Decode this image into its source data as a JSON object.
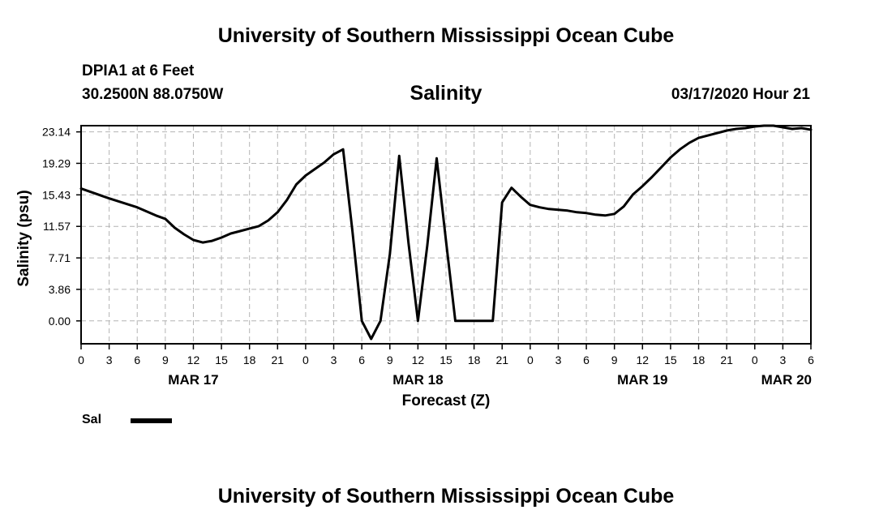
{
  "header": {
    "title": "University of Southern Mississippi Ocean Cube",
    "station": "DPIA1 at 6 Feet",
    "coordinates": "30.2500N 88.0750W",
    "parameter": "Salinity",
    "timestamp": "03/17/2020 Hour 21"
  },
  "footer": {
    "title": "University of Southern Mississippi Ocean Cube"
  },
  "chart_data": {
    "type": "line",
    "ylabel": "Salinity (psu)",
    "xlabel": "Forecast (Z)",
    "yticks": [
      "23.14",
      "19.29",
      "15.43",
      "11.57",
      "7.71",
      "3.86",
      "0.00"
    ],
    "ytick_values": [
      23.14,
      19.29,
      15.43,
      11.57,
      7.71,
      3.86,
      0.0
    ],
    "ylim": [
      -2.8,
      23.9
    ],
    "xlim": [
      0,
      78
    ],
    "xtick_hours": [
      0,
      3,
      6,
      9,
      12,
      15,
      18,
      21,
      24,
      27,
      30,
      33,
      36,
      39,
      42,
      45,
      48,
      51,
      54,
      57,
      60,
      63,
      66,
      69,
      72,
      75,
      78
    ],
    "xtick_labels": [
      "0",
      "3",
      "6",
      "9",
      "12",
      "15",
      "18",
      "21",
      "0",
      "3",
      "6",
      "9",
      "12",
      "15",
      "18",
      "21",
      "0",
      "3",
      "6",
      "9",
      "12",
      "15",
      "18",
      "21",
      "0",
      "3",
      "6"
    ],
    "date_labels": [
      {
        "hour": 12,
        "label": "MAR 17"
      },
      {
        "hour": 36,
        "label": "MAR 18"
      },
      {
        "hour": 60,
        "label": "MAR 19"
      },
      {
        "hour": 78,
        "label": "MAR 20"
      }
    ],
    "grid": true,
    "legend_position": "bottom-left",
    "series": [
      {
        "name": "Sal",
        "color": "#000000",
        "x": [
          0,
          3,
          6,
          8,
          9,
          10,
          11,
          12,
          13,
          14,
          15,
          16,
          17,
          18,
          19,
          20,
          21,
          22,
          23,
          24,
          25,
          26,
          27,
          28,
          29,
          30,
          31,
          32,
          33,
          34,
          35,
          36,
          37,
          38,
          39,
          40,
          41,
          42,
          43,
          44,
          45,
          46,
          47,
          48,
          49,
          50,
          51,
          52,
          53,
          54,
          55,
          56,
          57,
          58,
          59,
          60,
          61,
          62,
          63,
          64,
          65,
          66,
          67,
          68,
          69,
          70,
          71,
          72,
          73,
          74,
          75,
          76,
          77,
          78
        ],
        "y": [
          16.2,
          15.0,
          13.9,
          12.9,
          12.5,
          11.4,
          10.6,
          9.9,
          9.6,
          9.8,
          10.2,
          10.7,
          11.0,
          11.3,
          11.6,
          12.3,
          13.3,
          14.8,
          16.7,
          17.8,
          18.6,
          19.4,
          20.4,
          21.0,
          11.0,
          0.0,
          -2.2,
          0.0,
          8.2,
          20.2,
          9.5,
          0.0,
          9.2,
          19.9,
          9.8,
          0.0,
          0.0,
          0.0,
          0.0,
          0.0,
          14.5,
          16.3,
          15.2,
          14.2,
          13.9,
          13.7,
          13.6,
          13.5,
          13.3,
          13.2,
          13.0,
          12.9,
          13.1,
          14.0,
          15.5,
          16.5,
          17.6,
          18.8,
          20.0,
          21.0,
          21.8,
          22.4,
          22.7,
          23.0,
          23.3,
          23.5,
          23.6,
          23.8,
          23.9,
          23.9,
          23.7,
          23.5,
          23.6,
          23.4
        ]
      }
    ]
  }
}
